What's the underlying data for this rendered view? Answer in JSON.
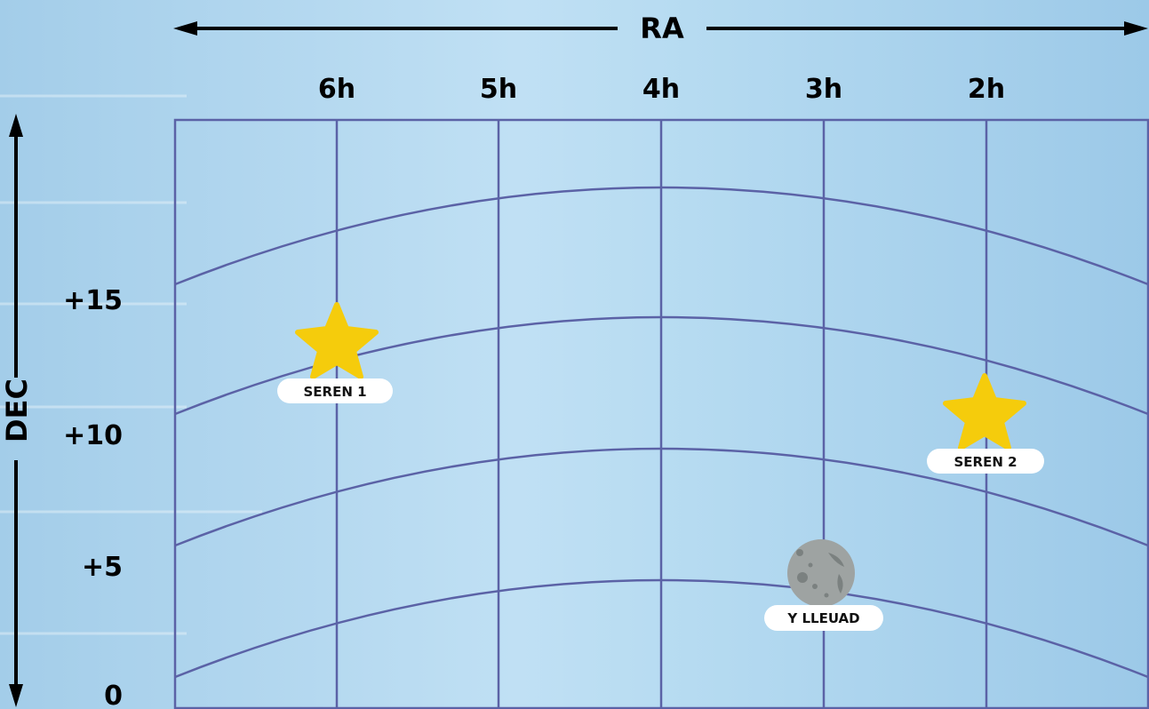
{
  "axes": {
    "ra_label": "RA",
    "dec_label": "DEC",
    "ra_ticks": [
      "6h",
      "5h",
      "4h",
      "3h",
      "2h"
    ],
    "dec_ticks": [
      "+15",
      "+10",
      "+5",
      "0"
    ]
  },
  "objects": [
    {
      "name": "SEREN 1",
      "kind": "star",
      "ra_hours": 6,
      "dec_deg": 13.5
    },
    {
      "name": "SEREN 2",
      "kind": "star",
      "ra_hours": 2,
      "dec_deg": 10.5
    },
    {
      "name": "Y LLEUAD",
      "kind": "moon",
      "ra_hours": 3,
      "dec_deg": 4.5
    }
  ],
  "colors": {
    "grid": "#5b62a6",
    "star": "#f5cc0c",
    "moon": "#9ea3a2",
    "moon_crater": "#7b8180",
    "label_bg": "#ffffff",
    "axis": "#000000"
  }
}
